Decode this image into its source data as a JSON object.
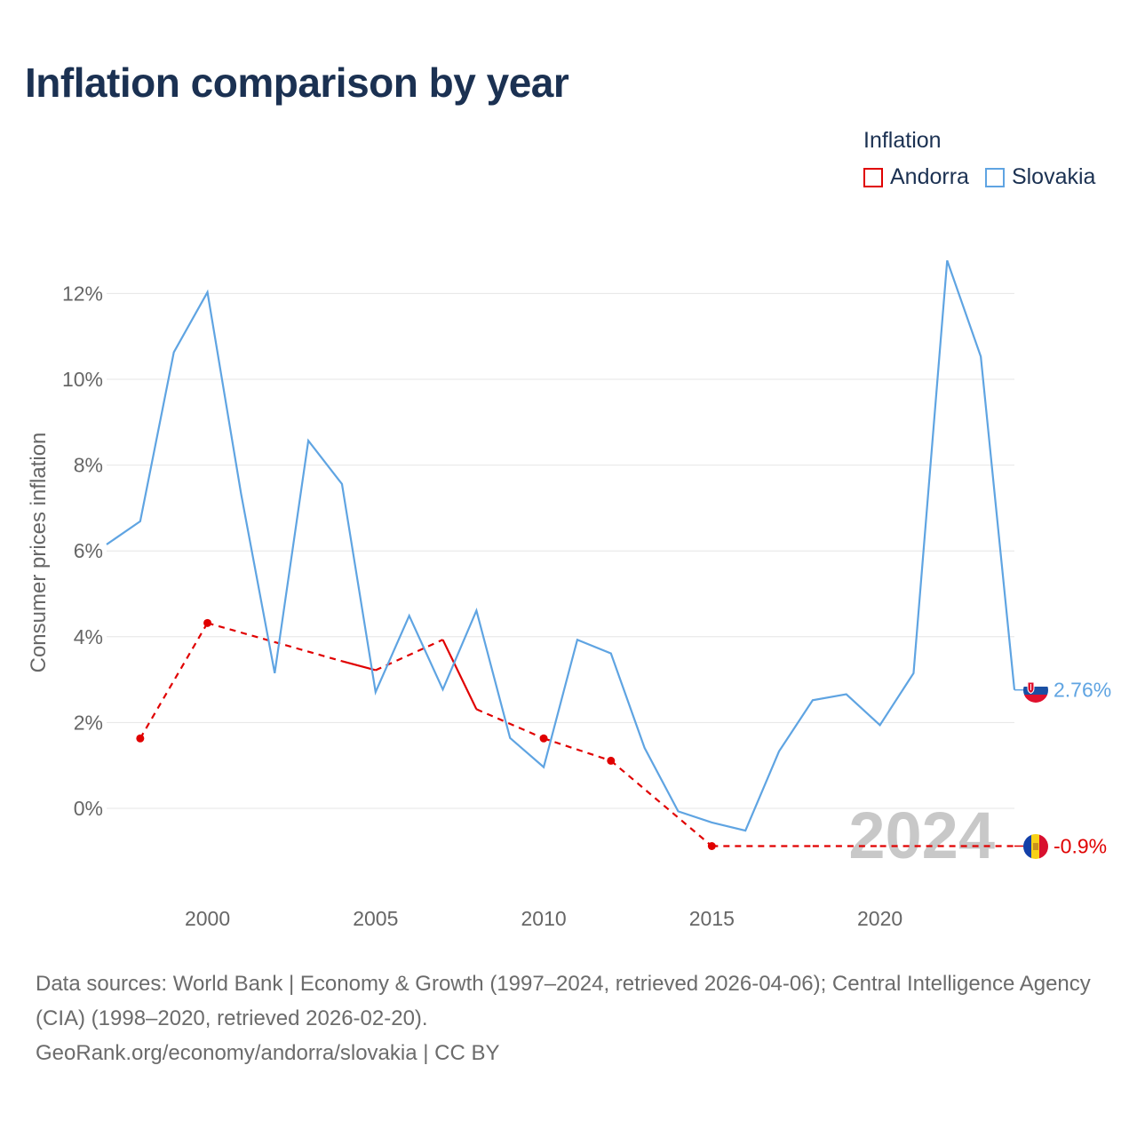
{
  "chart_data": {
    "type": "line",
    "title": "Inflation comparison by year",
    "legend_title": "Inflation",
    "legend_position": "top-right",
    "ylabel": "Consumer prices inflation",
    "xlabel": "",
    "xlim": [
      1997,
      2024
    ],
    "ylim": [
      -2,
      13
    ],
    "yticks": [
      0,
      2,
      4,
      6,
      8,
      10,
      12
    ],
    "ytick_labels": [
      "0%",
      "2%",
      "4%",
      "6%",
      "8%",
      "10%",
      "12%"
    ],
    "xticks": [
      2000,
      2005,
      2010,
      2015,
      2020
    ],
    "xtick_labels": [
      "2000",
      "2005",
      "2010",
      "2015",
      "2020"
    ],
    "grid": true,
    "watermark_year": "2024",
    "series": [
      {
        "name": "Andorra",
        "color": "#e00000",
        "marker_points": [
          1998,
          2000,
          2010,
          2012,
          2015
        ],
        "gaps_dashed": true,
        "x": [
          1998,
          2000,
          2004,
          2005,
          2007,
          2008,
          2010,
          2012,
          2015,
          2018,
          2020,
          2024
        ],
        "values": [
          1.63,
          4.32,
          3.43,
          3.22,
          3.93,
          2.31,
          1.63,
          1.11,
          -0.88,
          -0.88,
          -0.88,
          -0.88
        ],
        "end_label": "-0.9%",
        "flag_icon": "andorra-flag-icon"
      },
      {
        "name": "Slovakia",
        "color": "#5fa4e2",
        "marker_points": [],
        "gaps_dashed": false,
        "x": [
          1997,
          1998,
          1999,
          2000,
          2001,
          2002,
          2003,
          2004,
          2005,
          2006,
          2007,
          2008,
          2009,
          2010,
          2011,
          2012,
          2013,
          2014,
          2015,
          2016,
          2017,
          2018,
          2019,
          2020,
          2021,
          2022,
          2023,
          2024
        ],
        "values": [
          6.15,
          6.69,
          10.63,
          12.03,
          7.33,
          3.15,
          8.57,
          7.56,
          2.71,
          4.49,
          2.77,
          4.61,
          1.64,
          0.96,
          3.93,
          3.61,
          1.41,
          -0.07,
          -0.33,
          -0.52,
          1.33,
          2.52,
          2.66,
          1.94,
          3.15,
          12.77,
          10.53,
          2.76
        ],
        "end_label": "2.76%",
        "flag_icon": "slovakia-flag-icon"
      }
    ]
  },
  "footer": {
    "sources": "Data sources: World Bank | Economy & Growth (1997–2024, retrieved 2026-04-06); Central Intelligence Agency (CIA) (1998–2020, retrieved 2026-02-20).",
    "link": "GeoRank.org/economy/andorra/slovakia",
    "license": " | CC BY"
  }
}
